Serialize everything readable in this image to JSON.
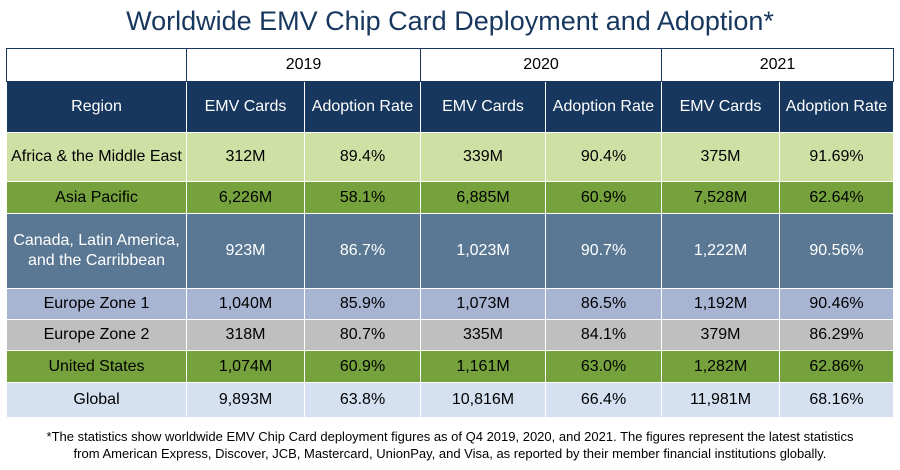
{
  "title": "Worldwide EMV Chip Card Deployment and Adoption*",
  "years": [
    "2019",
    "2020",
    "2021"
  ],
  "columns": {
    "region": "Region",
    "cards": "EMV Cards",
    "rate": "Adoption Rate"
  },
  "rows": [
    {
      "region": "Africa & the Middle East",
      "bg": "#cfe0a5",
      "fg": "#000000",
      "cards": [
        "312M",
        "339M",
        "375M"
      ],
      "rates": [
        "89.4%",
        "90.4%",
        "91.69%"
      ]
    },
    {
      "region": "Asia Pacific",
      "bg": "#76a23d",
      "fg": "#000000",
      "cards": [
        "6,226M",
        "6,885M",
        "7,528M"
      ],
      "rates": [
        "58.1%",
        "60.9%",
        "62.64%"
      ]
    },
    {
      "region": "Canada, Latin America, and the Carribbean",
      "bg": "#5a7893",
      "fg": "#ffffff",
      "cards": [
        "923M",
        "1,023M",
        "1,222M"
      ],
      "rates": [
        "86.7%",
        "90.7%",
        "90.56%"
      ]
    },
    {
      "region": "Europe Zone 1",
      "bg": "#a7b4d2",
      "fg": "#000000",
      "cards": [
        "1,040M",
        "1,073M",
        "1,192M"
      ],
      "rates": [
        "85.9%",
        "86.5%",
        "90.46%"
      ]
    },
    {
      "region": "Europe Zone 2",
      "bg": "#bfbfbf",
      "fg": "#000000",
      "cards": [
        "318M",
        "335M",
        "379M"
      ],
      "rates": [
        "80.7%",
        "84.1%",
        "86.29%"
      ]
    },
    {
      "region": "United States",
      "bg": "#76a23d",
      "fg": "#000000",
      "cards": [
        "1,074M",
        "1,161M",
        "1,282M"
      ],
      "rates": [
        "60.9%",
        "63.0%",
        "62.86%"
      ]
    },
    {
      "region": "Global",
      "bg": "#d5e0f1",
      "fg": "#000000",
      "cards": [
        "9,893M",
        "10,816M",
        "11,981M"
      ],
      "rates": [
        "63.8%",
        "66.4%",
        "68.16%"
      ]
    }
  ],
  "footnote": {
    "line1": "*The statistics show worldwide EMV Chip Card deployment figures as of Q4 2019, 2020, and 2021. The figures represent the latest statistics",
    "line2": "from American Express, Discover, JCB, Mastercard, UnionPay, and Visa, as reported by their member financial institutions globally."
  },
  "chart_data": {
    "type": "table",
    "title": "Worldwide EMV Chip Card Deployment and Adoption*",
    "columns": [
      "Region",
      "2019 EMV Cards",
      "2019 Adoption Rate",
      "2020 EMV Cards",
      "2020 Adoption Rate",
      "2021 EMV Cards",
      "2021 Adoption Rate"
    ],
    "rows": [
      [
        "Africa & the Middle East",
        "312M",
        "89.4%",
        "339M",
        "90.4%",
        "375M",
        "91.69%"
      ],
      [
        "Asia Pacific",
        "6,226M",
        "58.1%",
        "6,885M",
        "60.9%",
        "7,528M",
        "62.64%"
      ],
      [
        "Canada, Latin America, and the Carribbean",
        "923M",
        "86.7%",
        "1,023M",
        "90.7%",
        "1,222M",
        "90.56%"
      ],
      [
        "Europe Zone 1",
        "1,040M",
        "85.9%",
        "1,073M",
        "86.5%",
        "1,192M",
        "90.46%"
      ],
      [
        "Europe Zone 2",
        "318M",
        "80.7%",
        "335M",
        "84.1%",
        "379M",
        "86.29%"
      ],
      [
        "United States",
        "1,074M",
        "60.9%",
        "1,161M",
        "63.0%",
        "1,282M",
        "62.86%"
      ],
      [
        "Global",
        "9,893M",
        "63.8%",
        "10,816M",
        "66.4%",
        "11,981M",
        "68.16%"
      ]
    ]
  }
}
